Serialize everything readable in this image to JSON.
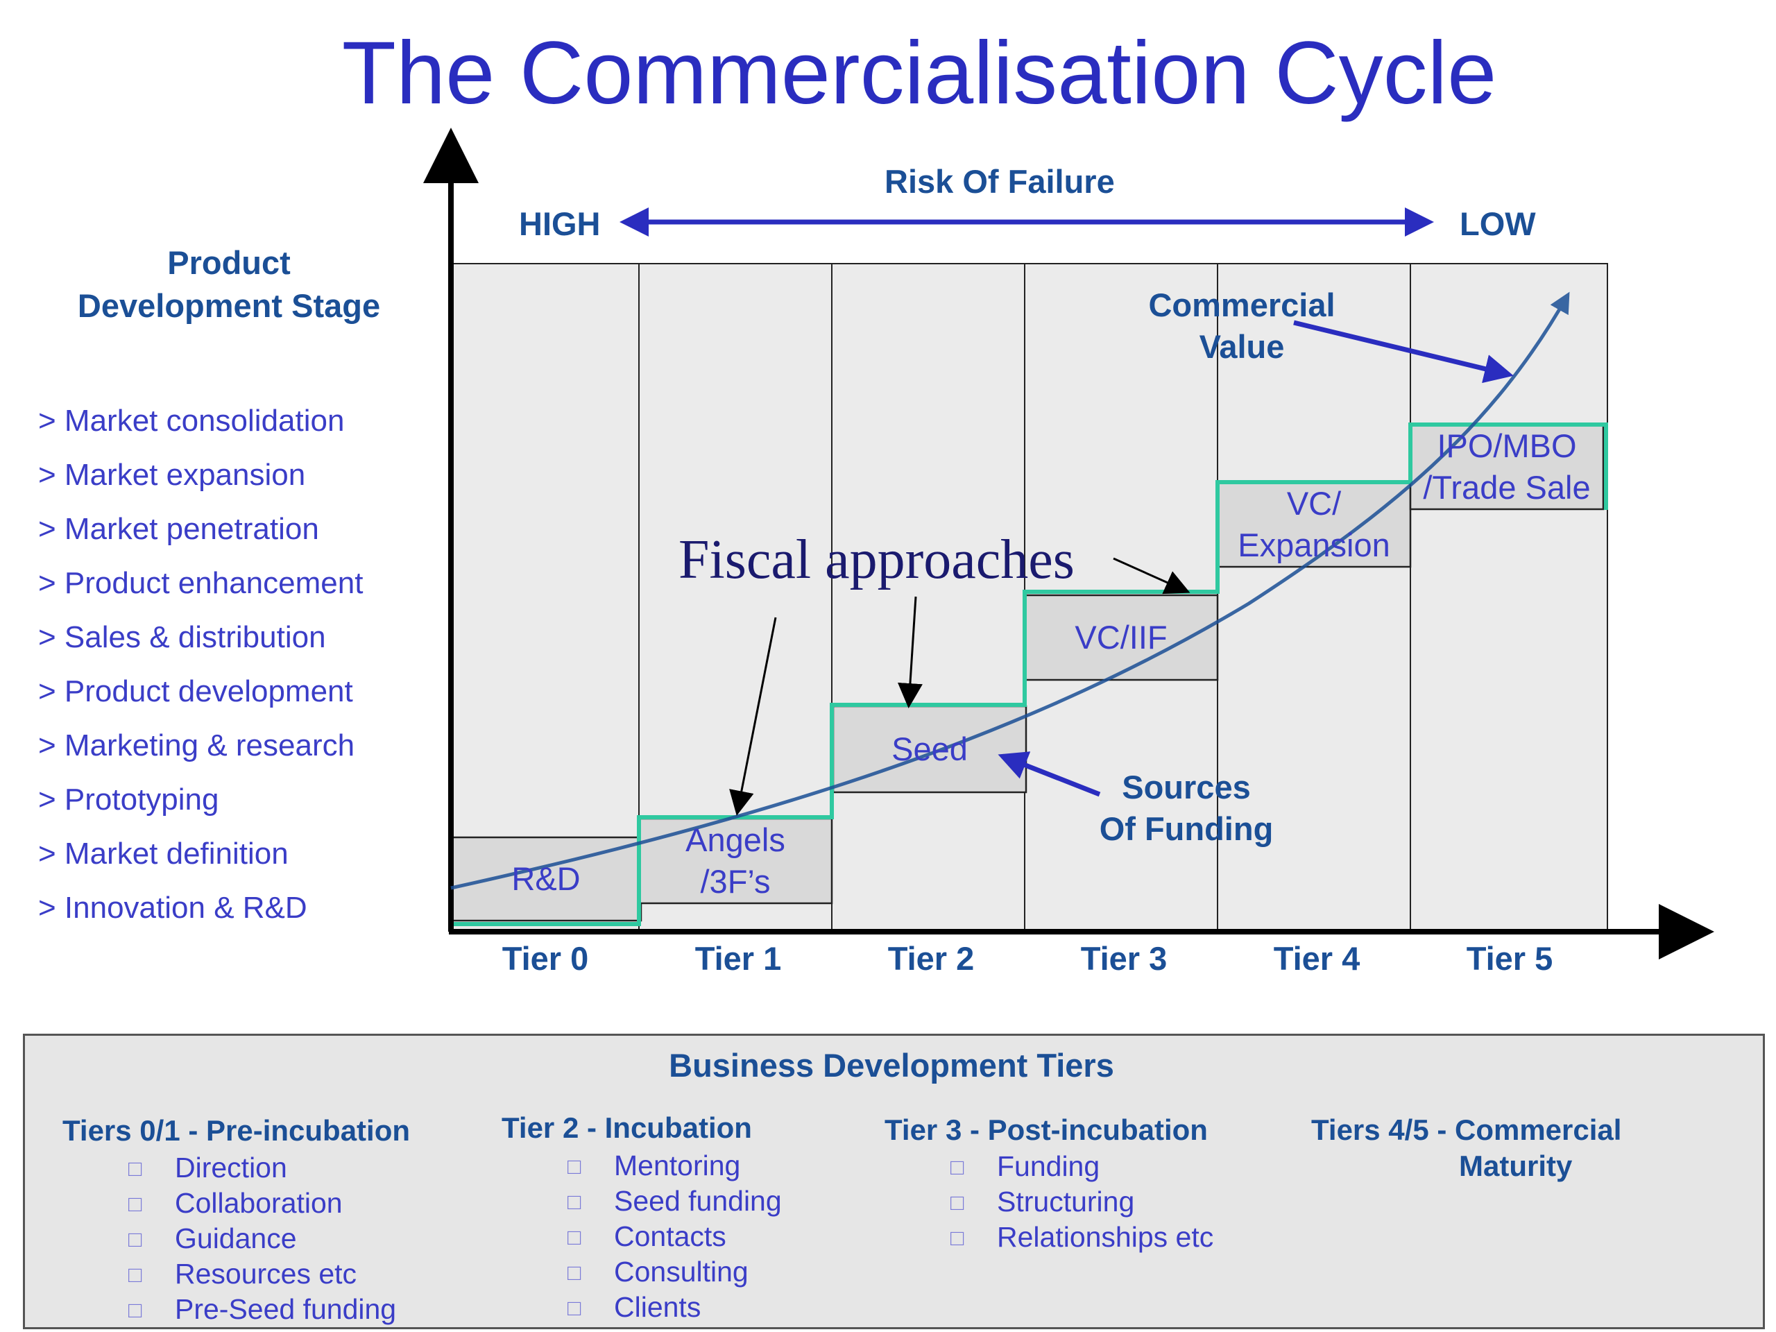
{
  "title": "The Commercialisation Cycle",
  "risk": {
    "title": "Risk Of Failure",
    "high": "HIGH",
    "low": "LOW"
  },
  "stage_title": [
    "Product",
    "Development Stage"
  ],
  "stages": [
    "> Market consolidation",
    "> Market expansion",
    "> Market penetration",
    "> Product enhancement",
    "> Sales & distribution",
    "> Product development",
    "> Marketing & research",
    "> Prototyping",
    "> Market definition",
    "> Innovation & R&D"
  ],
  "tiers": [
    "Tier 0",
    "Tier 1",
    "Tier 2",
    "Tier 3",
    "Tier 4",
    "Tier 5"
  ],
  "funding_steps": [
    {
      "line1": "R&D",
      "line2": ""
    },
    {
      "line1": "Angels",
      "line2": "/3F’s"
    },
    {
      "line1": "Seed",
      "line2": ""
    },
    {
      "line1": "VC/IIF",
      "line2": ""
    },
    {
      "line1": "VC/",
      "line2": "Expansion"
    },
    {
      "line1": "IPO/MBO",
      "line2": "/Trade Sale"
    }
  ],
  "fiscal_label": "Fiscal approaches",
  "commercial_value": [
    "Commercial",
    "Value"
  ],
  "sources_of_funding": [
    "Sources",
    "Of Funding"
  ],
  "colors": {
    "title_blue": "#2a2dbf",
    "navy": "#1b4f96",
    "step_green": "#2fc9a0",
    "column_grey": "#ebebeb"
  },
  "bdt": {
    "title": "Business Development Tiers",
    "columns": [
      {
        "head": [
          "Tiers 0/1 - Pre-incubation"
        ],
        "items": [
          "Direction",
          "Collaboration",
          "Guidance",
          "Resources etc",
          "Pre-Seed funding"
        ]
      },
      {
        "head": [
          "Tier 2 - Incubation"
        ],
        "items": [
          "Mentoring",
          "Seed funding",
          "Contacts",
          "Consulting",
          "Clients"
        ]
      },
      {
        "head": [
          "Tier 3 - Post-incubation"
        ],
        "items": [
          "Funding",
          "Structuring",
          "Relationships etc"
        ]
      },
      {
        "head": [
          "Tiers 4/5 - Commercial",
          "Maturity"
        ],
        "items": []
      }
    ]
  }
}
